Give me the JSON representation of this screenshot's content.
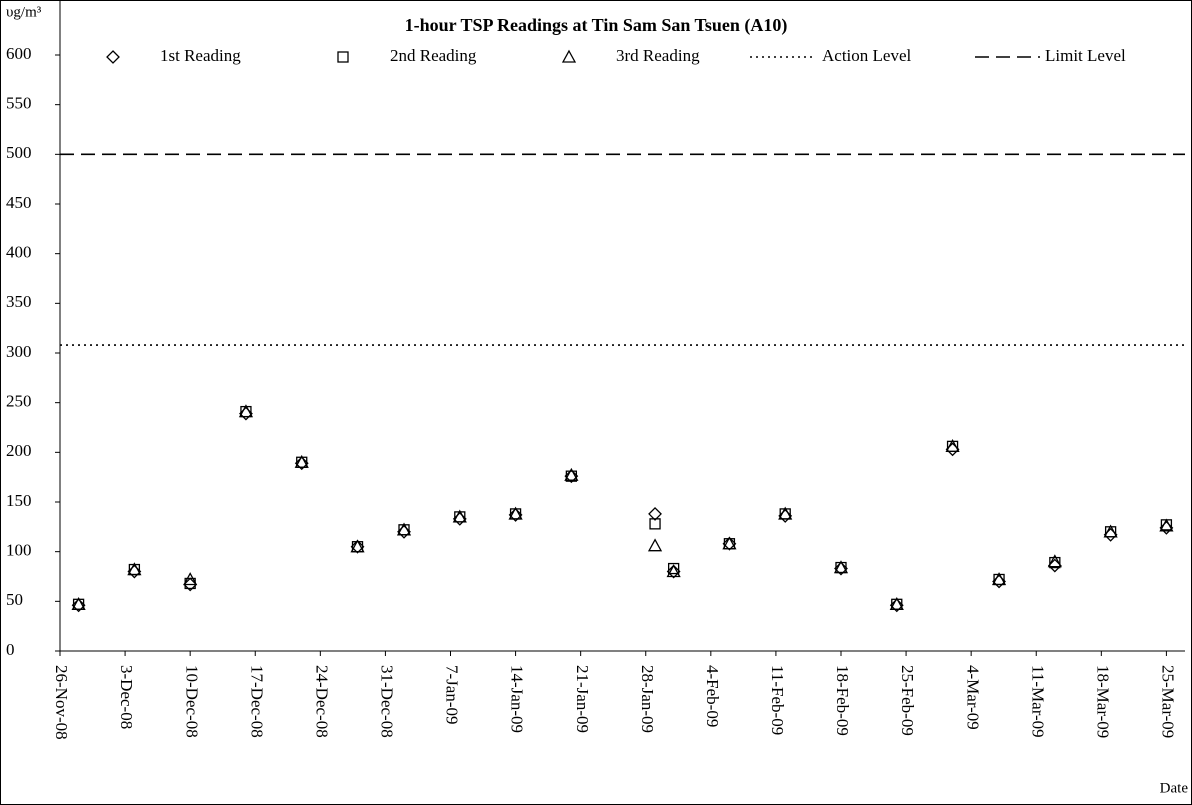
{
  "chart_data": {
    "type": "scatter",
    "title": "1-hour TSP Readings at Tin Sam San Tsuen (A10)",
    "y_label": "υg/m³",
    "x_label": "Date",
    "x": [
      "2008-11-28",
      "2008-12-04",
      "2008-12-10",
      "2008-12-16",
      "2008-12-22",
      "2008-12-28",
      "2009-01-02",
      "2009-01-08",
      "2009-01-14",
      "2009-01-20",
      "2009-01-29",
      "2009-01-31",
      "2009-02-06",
      "2009-02-12",
      "2009-02-18",
      "2009-02-24",
      "2009-03-02",
      "2009-03-07",
      "2009-03-13",
      "2009-03-19",
      "2009-03-25"
    ],
    "series": [
      {
        "name": "1st Reading",
        "marker": "diamond",
        "color": "#000000",
        "values": [
          46,
          80,
          67,
          239,
          189,
          105,
          120,
          133,
          137,
          176,
          138,
          80,
          108,
          136,
          83,
          46,
          203,
          70,
          86,
          117,
          124
        ]
      },
      {
        "name": "2nd Reading",
        "marker": "square",
        "color": "#000000",
        "values": [
          47,
          82,
          68,
          241,
          190,
          105,
          122,
          135,
          138,
          176,
          128,
          83,
          108,
          138,
          84,
          47,
          206,
          72,
          89,
          120,
          127
        ]
      },
      {
        "name": "3rd Reading",
        "marker": "triangle",
        "color": "#000000",
        "values": [
          47,
          82,
          72,
          241,
          190,
          105,
          122,
          135,
          138,
          177,
          106,
          80,
          108,
          138,
          84,
          47,
          206,
          72,
          90,
          120,
          126
        ]
      }
    ],
    "reference_lines": [
      {
        "name": "Action Level",
        "value": 308,
        "style": "dotted",
        "color": "#000000"
      },
      {
        "name": "Limit Level",
        "value": 500,
        "style": "dashed",
        "color": "#000000"
      }
    ],
    "xlim": [
      "2008-11-26",
      "2009-03-27"
    ],
    "xticks": [
      {
        "value": "2008-11-26",
        "label": "26-Nov-08"
      },
      {
        "value": "2008-12-03",
        "label": "3-Dec-08"
      },
      {
        "value": "2008-12-10",
        "label": "10-Dec-08"
      },
      {
        "value": "2008-12-17",
        "label": "17-Dec-08"
      },
      {
        "value": "2008-12-24",
        "label": "24-Dec-08"
      },
      {
        "value": "2008-12-31",
        "label": "31-Dec-08"
      },
      {
        "value": "2009-01-07",
        "label": "7-Jan-09"
      },
      {
        "value": "2009-01-14",
        "label": "14-Jan-09"
      },
      {
        "value": "2009-01-21",
        "label": "21-Jan-09"
      },
      {
        "value": "2009-01-28",
        "label": "28-Jan-09"
      },
      {
        "value": "2009-02-04",
        "label": "4-Feb-09"
      },
      {
        "value": "2009-02-11",
        "label": "11-Feb-09"
      },
      {
        "value": "2009-02-18",
        "label": "18-Feb-09"
      },
      {
        "value": "2009-02-25",
        "label": "25-Feb-09"
      },
      {
        "value": "2009-03-04",
        "label": "4-Mar-09"
      },
      {
        "value": "2009-03-11",
        "label": "11-Mar-09"
      },
      {
        "value": "2009-03-18",
        "label": "18-Mar-09"
      },
      {
        "value": "2009-03-25",
        "label": "25-Mar-09"
      }
    ],
    "ylim": [
      0,
      600
    ],
    "yticks": [
      0,
      50,
      100,
      150,
      200,
      250,
      300,
      350,
      400,
      450,
      500,
      550,
      600
    ],
    "grid": false
  }
}
